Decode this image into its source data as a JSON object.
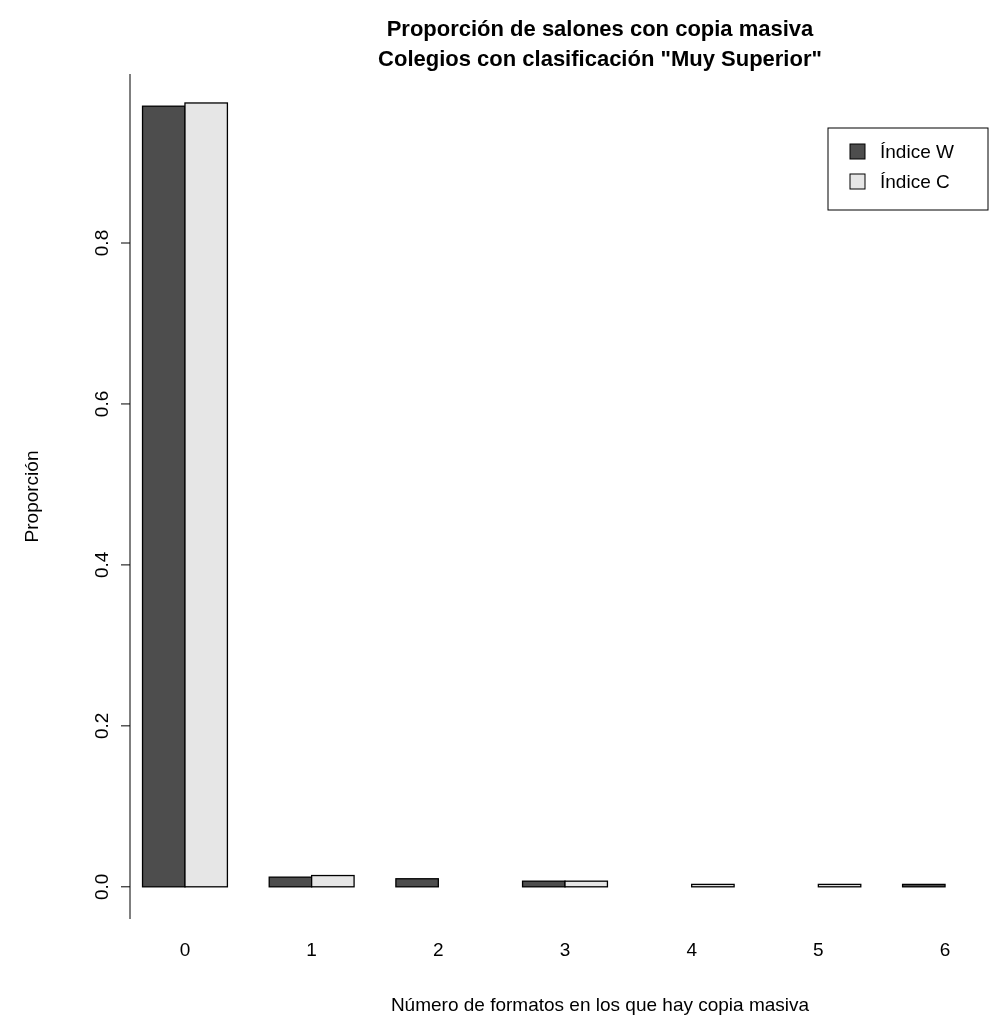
{
  "chart_data": {
    "type": "bar",
    "title": "Proporción de salones con copia masiva\nColegios con clasificación \"Muy Superior\"",
    "xlabel": "Número de formatos en los que hay copia masiva",
    "ylabel": "Proporción",
    "categories": [
      "0",
      "1",
      "2",
      "3",
      "4",
      "5",
      "6"
    ],
    "series": [
      {
        "name": "Índice W",
        "color": "#4d4d4d",
        "values": [
          0.97,
          0.012,
          0.01,
          0.007,
          0,
          0,
          0.003
        ]
      },
      {
        "name": "Índice C",
        "color": "#e6e6e6",
        "values": [
          0.974,
          0.014,
          0,
          0.007,
          0.003,
          0.003,
          0
        ]
      }
    ],
    "ylim": [
      -0.04,
      1.01
    ],
    "yticks": [
      {
        "value": 0,
        "label": "0.0"
      },
      {
        "value": 0.2,
        "label": "0.2"
      },
      {
        "value": 0.4,
        "label": "0.4"
      },
      {
        "value": 0.6,
        "label": "0.6"
      },
      {
        "value": 0.8,
        "label": "0.8"
      }
    ],
    "legend": "top right",
    "grid": false
  }
}
